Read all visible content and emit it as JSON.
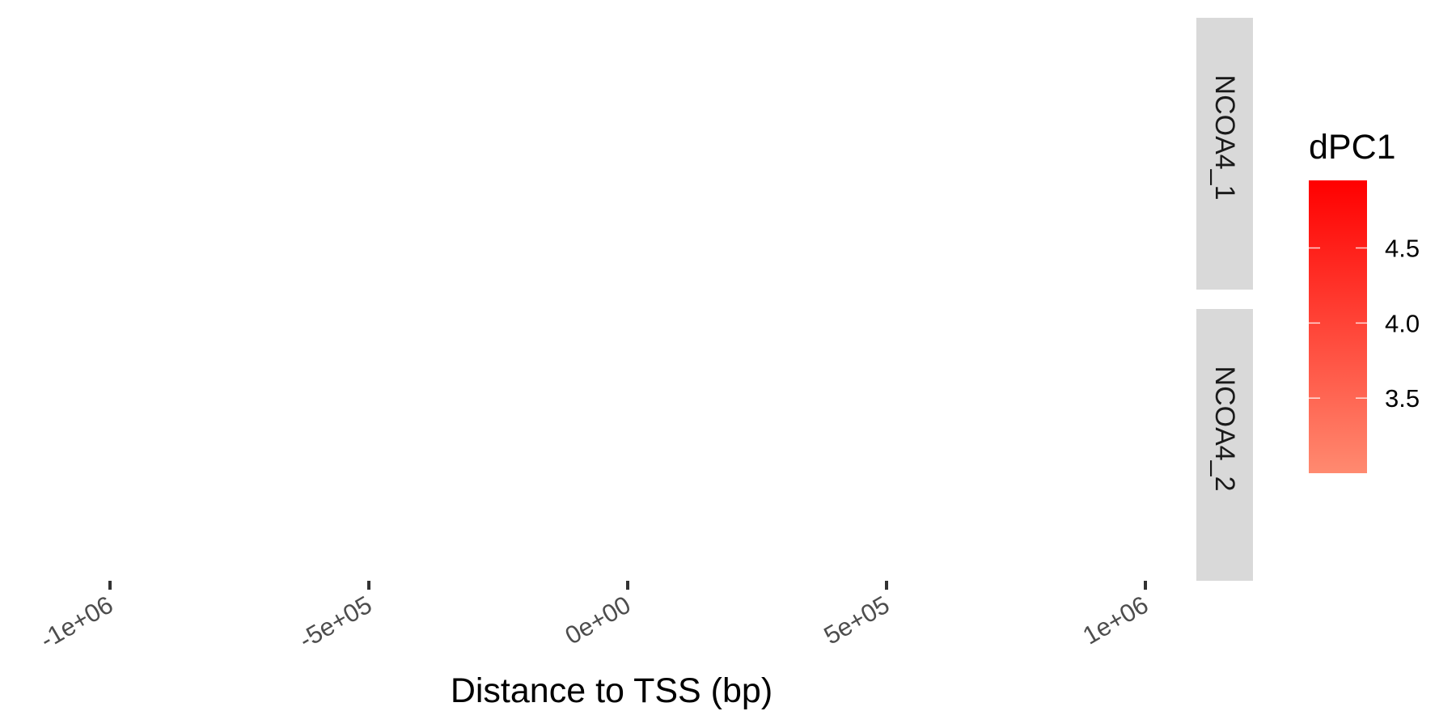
{
  "chart_data": {
    "type": "scatter",
    "xlabel": "Distance to TSS (bp)",
    "ylabel": "",
    "x_ticks": [
      {
        "value": -1000000,
        "label": "-1e+06"
      },
      {
        "value": -500000,
        "label": "-5e+05"
      },
      {
        "value": 0,
        "label": "0e+00"
      },
      {
        "value": 500000,
        "label": "5e+05"
      },
      {
        "value": 1000000,
        "label": "1e+06"
      }
    ],
    "xlim": [
      -1150000,
      1100000
    ],
    "grid": false,
    "facets": [
      {
        "label": "NCOA4_1",
        "points": []
      },
      {
        "label": "NCOA4_2",
        "points": []
      }
    ],
    "legend": {
      "title": "dPC1",
      "position": "right",
      "type": "colorbar",
      "range": [
        3.0,
        4.95
      ],
      "breaks": [
        {
          "value": 4.5,
          "label": "4.5"
        },
        {
          "value": 4.0,
          "label": "4.0"
        },
        {
          "value": 3.5,
          "label": "3.5"
        }
      ],
      "color_low": "#ff8a70",
      "color_high": "#ff0000"
    }
  }
}
